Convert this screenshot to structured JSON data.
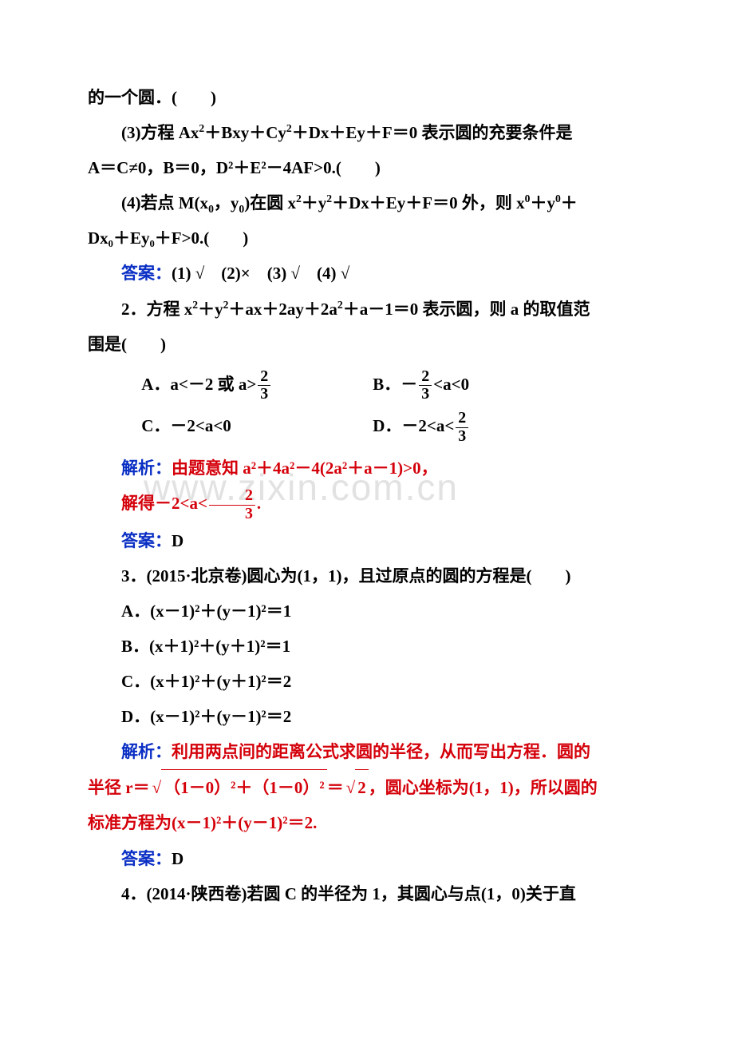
{
  "watermark": "www.zixin.com.cn",
  "colors": {
    "blue": "#0a2fc4",
    "red": "#d4000a",
    "black": "#000000",
    "watermark": "#e2e2e2",
    "background": "#ffffff"
  },
  "typography": {
    "body_fontsize": 21,
    "line_height": 2.1,
    "watermark_fontsize": 46,
    "font_family": "SimSun"
  },
  "p1": "的一个圆．(　　)",
  "p2a": "(3)方程 Ax",
  "p2b": "＋Bxy＋Cy",
  "p2c": "＋Dx＋Ey＋F＝0 表示圆的充要条件是",
  "p3": "A＝C≠0，B＝0，D²＋E²－4AF>0.(　　)",
  "p4a": "(4)若点 M(x",
  "p4b": "，y",
  "p4c": ")在圆 x",
  "p4d": "＋y",
  "p4e": "＋Dx＋Ey＋F＝0 外，则 x",
  "p4f": "＋y",
  "p4g": "＋",
  "p5": "Dx₀＋Ey₀＋F>0.(　　)",
  "ans1_label": "答案：",
  "ans1_val": "(1) √　(2)×　(3) √　(4) √",
  "q2a": "2．方程 x",
  "q2b": "＋y",
  "q2c": "＋ax＋2ay＋2a",
  "q2d": "＋a－1＝0 表示圆，则 a 的取值范",
  "q2e": "围是(　　)",
  "q2_optA_pre": "A．a<－2 或 a>",
  "q2_optA_num": "2",
  "q2_optA_den": "3",
  "q2_optB_pre": "B．－",
  "q2_optB_num": "2",
  "q2_optB_den": "3",
  "q2_optB_post": "<a<0",
  "q2_optC": "C．－2<a<0",
  "q2_optD_pre": "D．－2<a<",
  "q2_optD_num": "2",
  "q2_optD_den": "3",
  "q2_sol_label": "解析：",
  "q2_sol_text": "由题意知 a²＋4a²－4(2a²＋a－1)>0，",
  "q2_sol2_pre": "解得－2<a<",
  "q2_sol2_num": "2",
  "q2_sol2_den": "3",
  "q2_sol2_post": ".",
  "q2_ans_label": "答案：",
  "q2_ans_val": "D",
  "q3": "3．(2015·北京卷)圆心为(1，1)，且过原点的圆的方程是(　　)",
  "q3_optA": "A．(x－1)²＋(y－1)²＝1",
  "q3_optB": "B．(x＋1)²＋(y＋1)²＝1",
  "q3_optC": "C．(x＋1)²＋(y＋1)²＝2",
  "q3_optD": "D．(x－1)²＋(y－1)²＝2",
  "q3_sol_label": "解析：",
  "q3_sol_t1": "利用两点间的距离公式求圆的半径，从而写出方程．圆的",
  "q3_sol_t2a": "半径 r＝",
  "q3_sol_rad": "（1－0）²＋（1－0）²",
  "q3_sol_t2b": "＝",
  "q3_sol_rad2": "2",
  "q3_sol_t2c": "，圆心坐标为(1，1)，所以圆的",
  "q3_sol_t3": "标准方程为(x－1)²＋(y－1)²＝2.",
  "q3_ans_label": "答案：",
  "q3_ans_val": "D",
  "q4": "4．(2014·陕西卷)若圆 C 的半径为 1，其圆心与点(1，0)关于直"
}
